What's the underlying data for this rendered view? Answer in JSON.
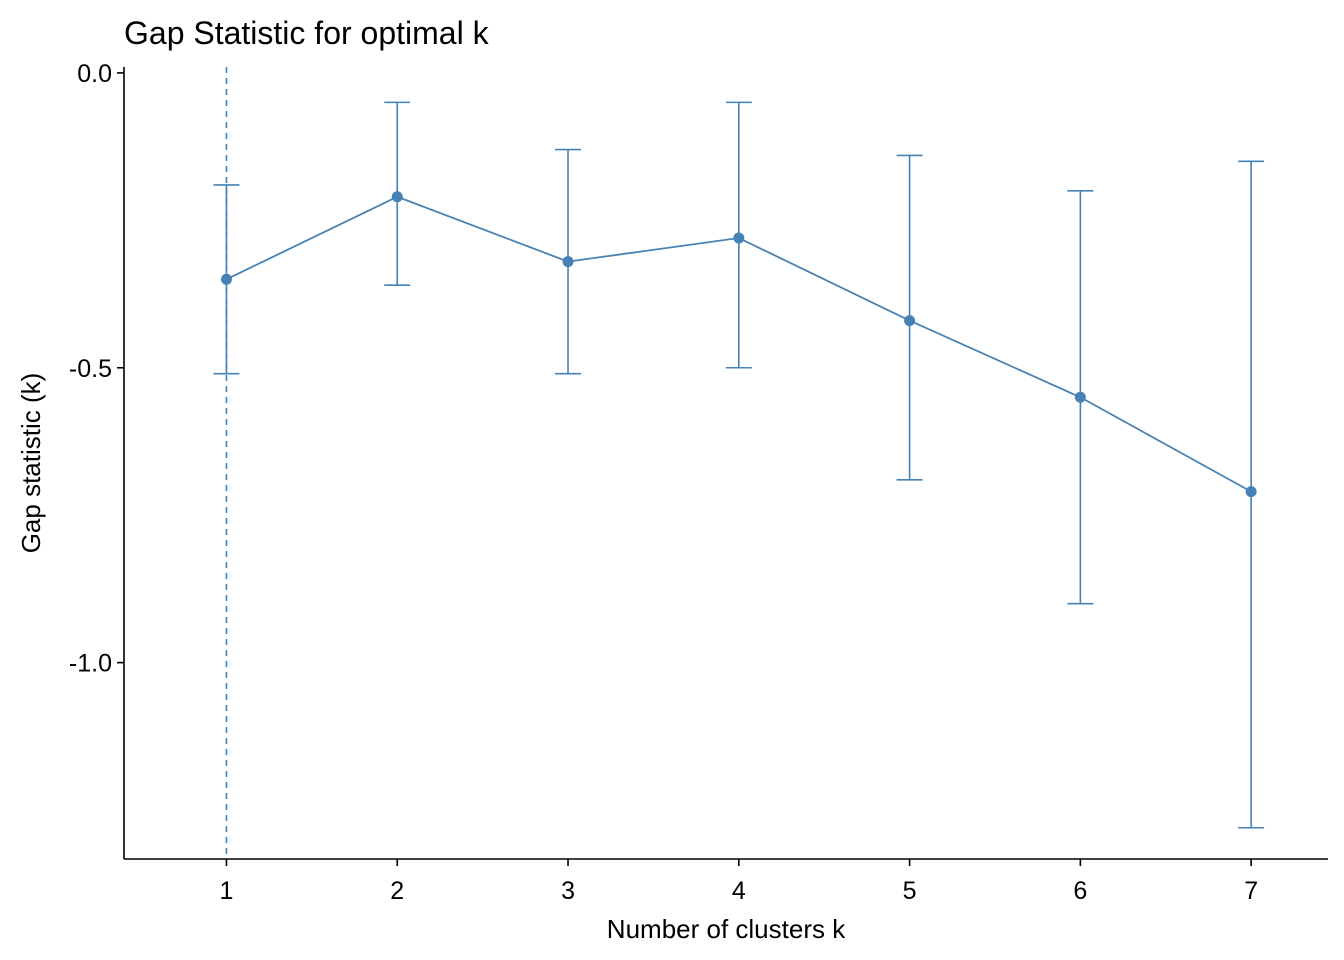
{
  "chart_data": {
    "type": "line",
    "title": "Gap Statistic for optimal k",
    "xlabel": "Number of clusters k",
    "ylabel": "Gap statistic (k)",
    "x": [
      1,
      2,
      3,
      4,
      5,
      6,
      7
    ],
    "series": [
      {
        "values": [
          -0.35,
          -0.21,
          -0.32,
          -0.28,
          -0.42,
          -0.55,
          -0.71
        ],
        "error_low": [
          -0.51,
          -0.36,
          -0.51,
          -0.5,
          -0.69,
          -0.9,
          -1.28
        ],
        "error_high": [
          -0.19,
          -0.05,
          -0.13,
          -0.05,
          -0.14,
          -0.2,
          -0.15
        ]
      }
    ],
    "xticks": [
      "1",
      "2",
      "3",
      "4",
      "5",
      "6",
      "7"
    ],
    "yticks": [
      0.0,
      -0.5,
      -1.0
    ],
    "ytick_labels": [
      "0.0",
      "-0.5",
      "-1.0"
    ],
    "xlim": [
      0.4,
      7.45
    ],
    "ylim": [
      -1.333,
      0.01
    ],
    "optimal_k": 1,
    "grid": false,
    "legend": "none",
    "colors": {
      "series": "#4682B4",
      "axis": "#000000"
    }
  }
}
